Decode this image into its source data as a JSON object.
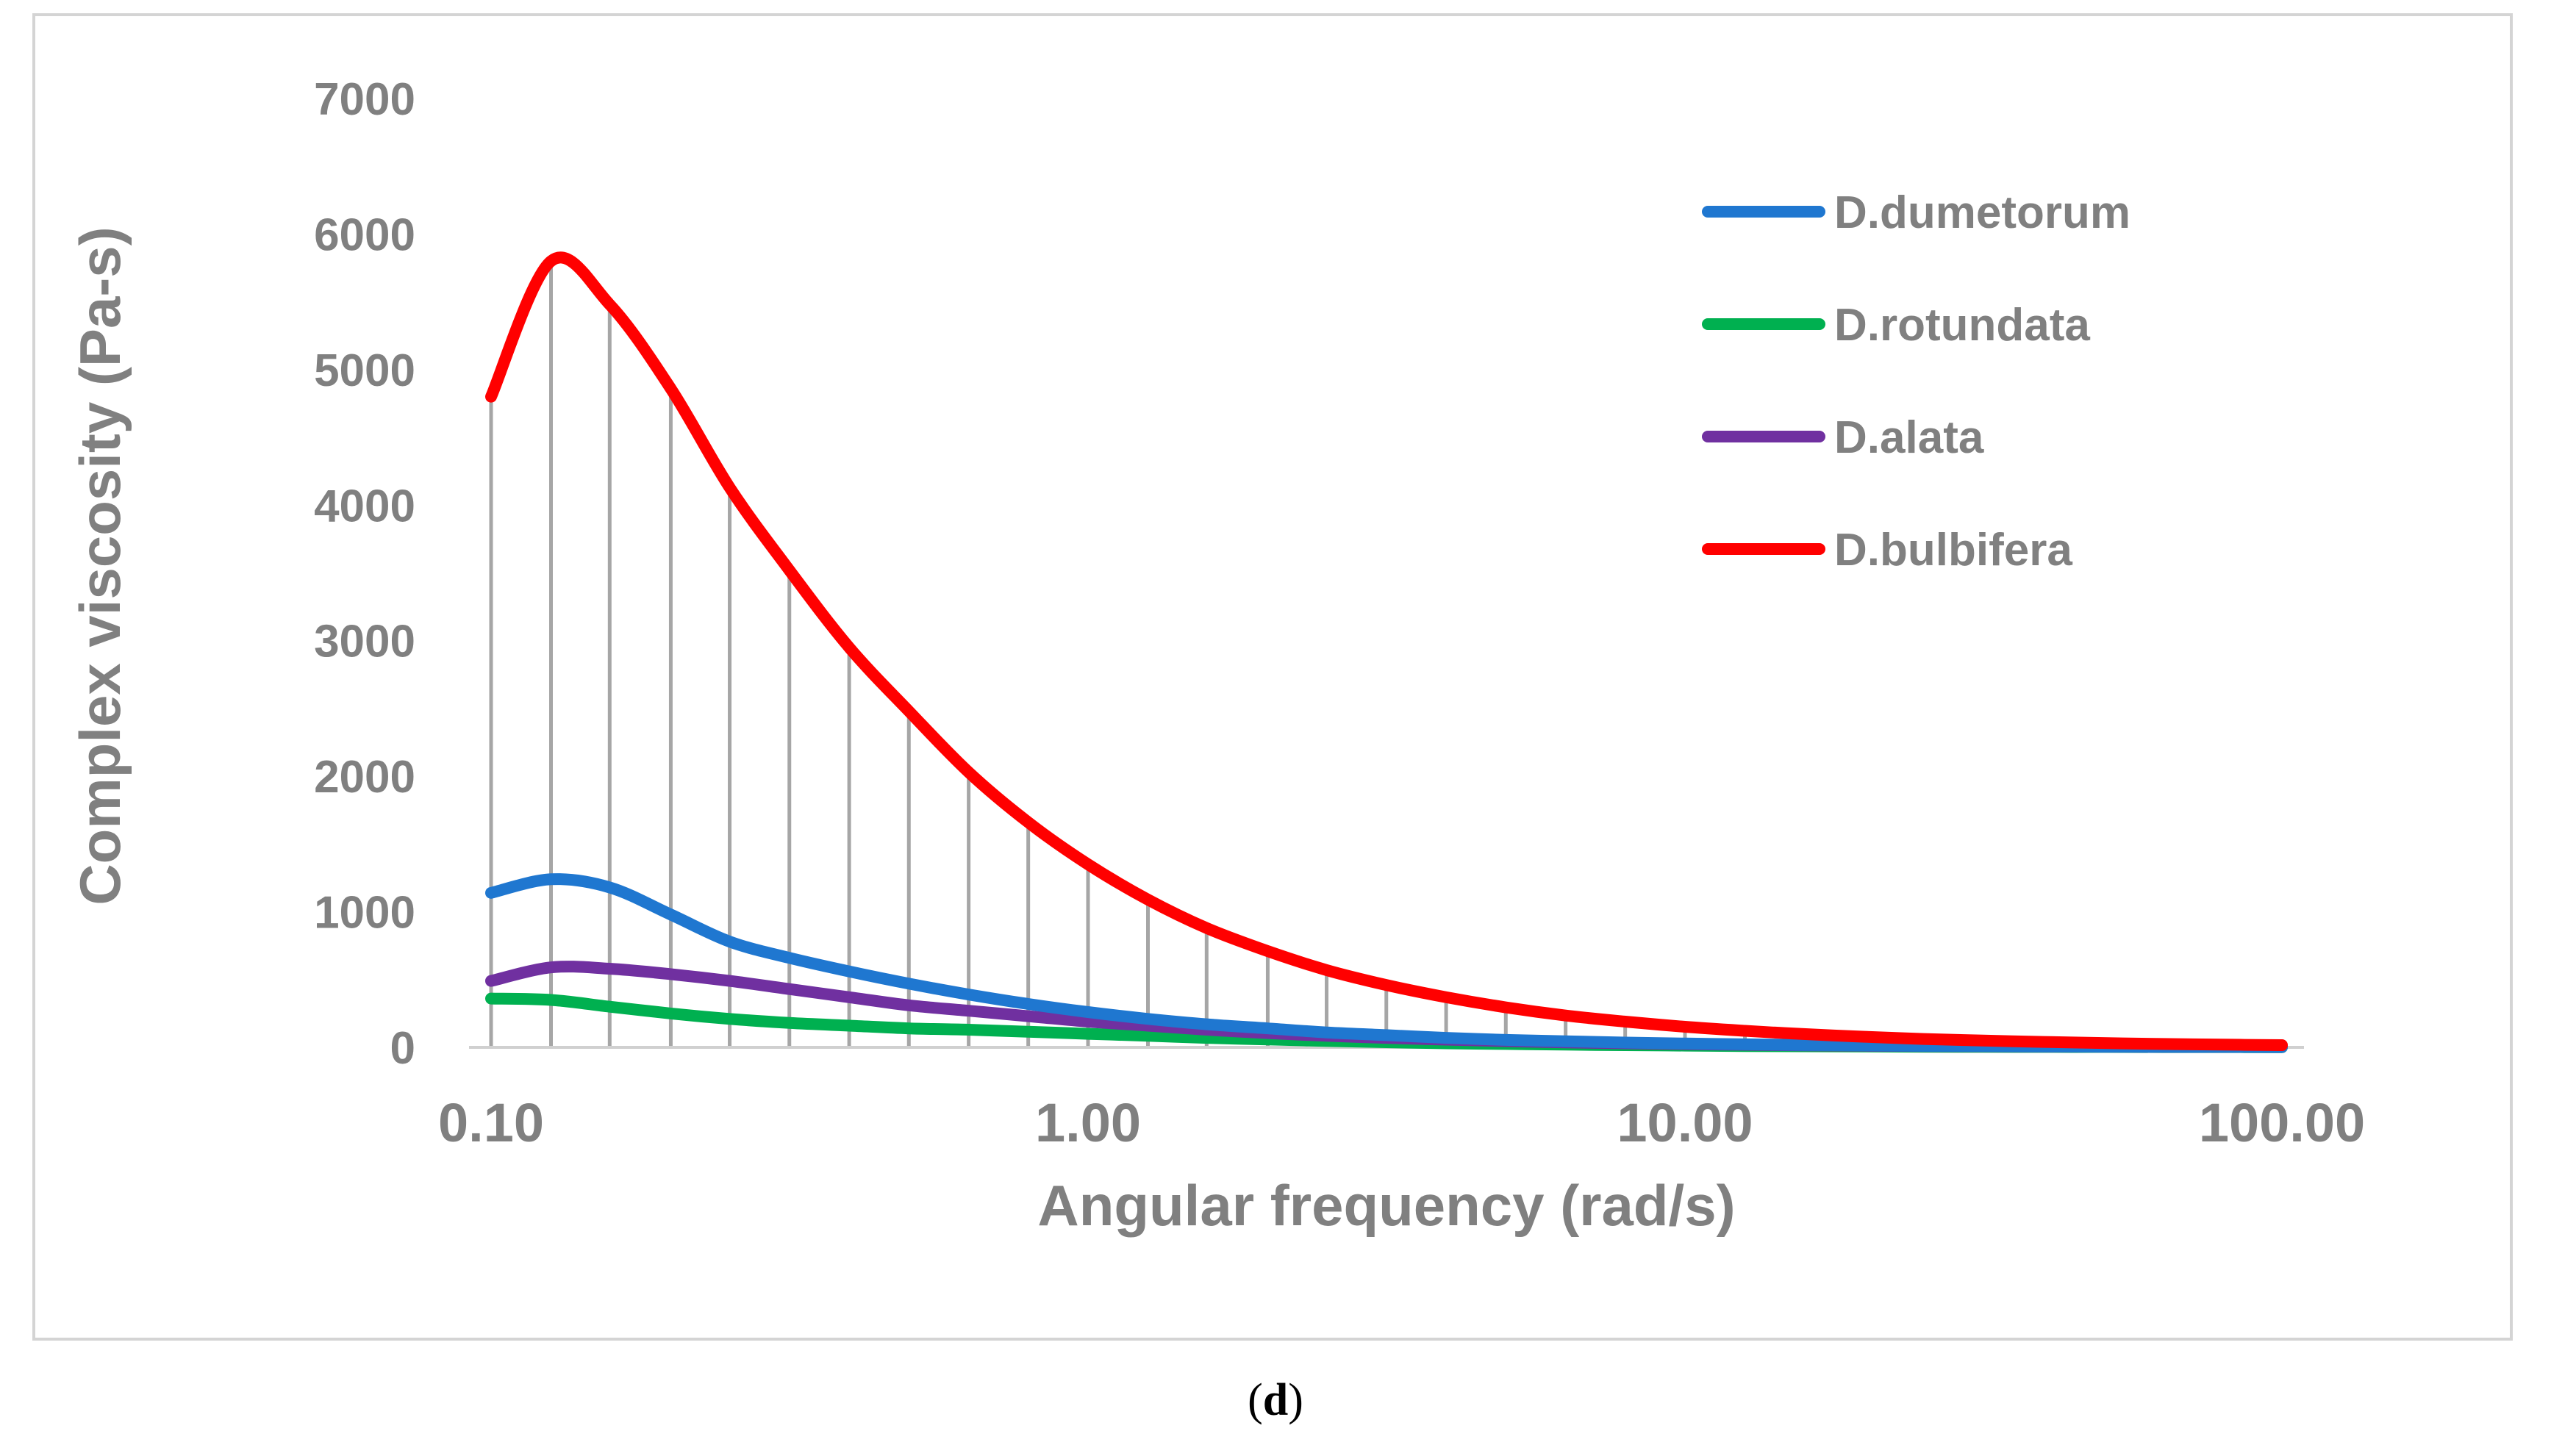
{
  "chart_data": {
    "type": "line",
    "title": "",
    "xlabel": "Angular frequency (rad/s)",
    "ylabel": "Complex viscosity (Pa-s)",
    "xscale": "log",
    "xlim": [
      0.1,
      100
    ],
    "ylim": [
      0,
      7000
    ],
    "xticks": [
      0.1,
      1,
      10,
      100
    ],
    "xtick_labels": [
      "0.10",
      "1.00",
      "10.00",
      "100.00"
    ],
    "yticks": [
      0,
      1000,
      2000,
      3000,
      4000,
      5000,
      6000,
      7000
    ],
    "ytick_labels": [
      "0",
      "1000",
      "2000",
      "3000",
      "4000",
      "5000",
      "6000",
      "7000"
    ],
    "x": [
      0.1,
      0.126,
      0.158,
      0.2,
      0.251,
      0.316,
      0.398,
      0.501,
      0.631,
      0.794,
      1.0,
      1.26,
      1.58,
      2.0,
      2.51,
      3.16,
      3.98,
      5.01,
      6.31,
      7.94,
      10.0,
      12.6,
      15.8,
      20.0,
      25.1,
      31.6,
      39.8,
      50.1,
      63.1,
      79.4,
      100.0
    ],
    "series": [
      {
        "name": "D.dumetorum",
        "color": "#1f77d0",
        "values": [
          1140,
          1240,
          1180,
          980,
          780,
          660,
          560,
          470,
          390,
          320,
          260,
          210,
          170,
          140,
          110,
          90,
          70,
          55,
          45,
          35,
          28,
          22,
          18,
          14,
          11,
          9,
          7,
          5,
          4,
          3,
          2
        ]
      },
      {
        "name": "D.rotundata",
        "color": "#00b050",
        "values": [
          360,
          350,
          300,
          250,
          210,
          180,
          160,
          140,
          130,
          115,
          100,
          85,
          70,
          58,
          47,
          38,
          30,
          25,
          20,
          16,
          13,
          10,
          8,
          7,
          5,
          4,
          3,
          3,
          2,
          2,
          1
        ]
      },
      {
        "name": "D.alata",
        "color": "#7030a0",
        "values": [
          490,
          590,
          580,
          540,
          490,
          430,
          370,
          310,
          270,
          230,
          190,
          160,
          130,
          105,
          85,
          70,
          57,
          46,
          37,
          30,
          24,
          19,
          15,
          12,
          10,
          8,
          6,
          5,
          4,
          3,
          2
        ]
      },
      {
        "name": "D.bulbifera",
        "color": "#ff0000",
        "values": [
          4800,
          5800,
          5480,
          4860,
          4130,
          3520,
          2950,
          2480,
          2030,
          1660,
          1350,
          1090,
          880,
          710,
          570,
          460,
          370,
          295,
          235,
          190,
          152,
          122,
          98,
          78,
          62,
          50,
          40,
          32,
          25,
          20,
          16
        ]
      }
    ],
    "legend": {
      "position": "top-right",
      "entries": [
        "D.dumetorum",
        " D.rotundata",
        "D.alata",
        "D.bulbifera"
      ]
    },
    "drop_lines": true
  },
  "figure": {
    "label_open": "(",
    "label_letter": "d",
    "label_close": ")"
  }
}
